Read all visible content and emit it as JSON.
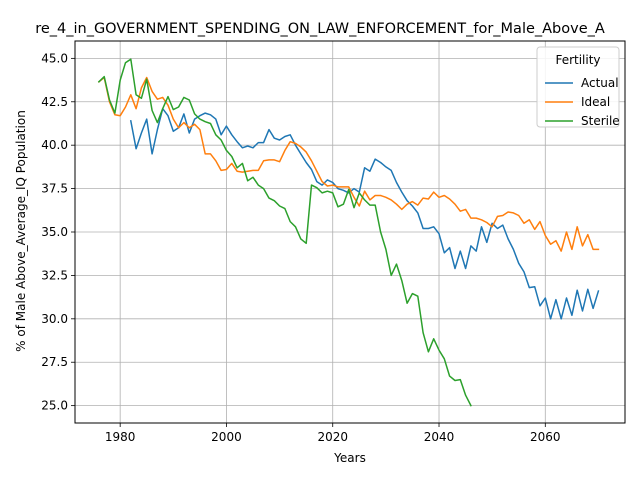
{
  "chart_data": {
    "type": "line",
    "title": "re_4_in_GOVERNMENT_SPENDING_ON_LAW_ENFORCEMENT_for_Male_Above_A",
    "xlabel": "Years",
    "ylabel": "% of Male Above_Average_IQ Population",
    "xlim": [
      1971.5,
      2075
    ],
    "ylim": [
      24.0,
      46.0
    ],
    "grid": true,
    "legend": {
      "title": "Fertility",
      "placement": "top-right"
    },
    "xticks": [
      1980,
      2000,
      2020,
      2040,
      2060
    ],
    "yticks": [
      25.0,
      27.5,
      30.0,
      32.5,
      35.0,
      37.5,
      40.0,
      42.5,
      45.0
    ],
    "series": [
      {
        "name": "Actual",
        "color": "#1f77b4",
        "points": [
          [
            1982,
            41.4
          ],
          [
            1983,
            39.8
          ],
          [
            1984,
            40.7
          ],
          [
            1985,
            41.5
          ],
          [
            1986,
            39.5
          ],
          [
            1987,
            40.9
          ],
          [
            1988,
            42.1
          ],
          [
            1989,
            41.7
          ],
          [
            1990,
            40.8
          ],
          [
            1991,
            41.0
          ],
          [
            1992,
            41.8
          ],
          [
            1993,
            40.7
          ],
          [
            1994,
            41.5
          ],
          [
            1995,
            41.7
          ],
          [
            1996,
            41.85
          ],
          [
            1997,
            41.75
          ],
          [
            1998,
            41.5
          ],
          [
            1999,
            40.6
          ],
          [
            2000,
            41.1
          ],
          [
            2001,
            40.6
          ],
          [
            2002,
            40.2
          ],
          [
            2003,
            39.85
          ],
          [
            2004,
            39.95
          ],
          [
            2005,
            39.85
          ],
          [
            2006,
            40.15
          ],
          [
            2007,
            40.15
          ],
          [
            2008,
            40.9
          ],
          [
            2009,
            40.4
          ],
          [
            2010,
            40.3
          ],
          [
            2011,
            40.5
          ],
          [
            2012,
            40.6
          ],
          [
            2013,
            40.0
          ],
          [
            2014,
            39.5
          ],
          [
            2015,
            39.0
          ],
          [
            2016,
            38.6
          ],
          [
            2017,
            37.9
          ],
          [
            2018,
            37.7
          ],
          [
            2019,
            38.0
          ],
          [
            2020,
            37.85
          ],
          [
            2021,
            37.5
          ],
          [
            2022,
            37.4
          ],
          [
            2023,
            37.25
          ],
          [
            2024,
            37.5
          ],
          [
            2025,
            37.3
          ],
          [
            2026,
            38.7
          ],
          [
            2027,
            38.5
          ],
          [
            2028,
            39.2
          ],
          [
            2029,
            39.0
          ],
          [
            2030,
            38.75
          ],
          [
            2031,
            38.55
          ],
          [
            2032,
            37.85
          ],
          [
            2033,
            37.3
          ],
          [
            2034,
            36.8
          ],
          [
            2035,
            36.5
          ],
          [
            2036,
            36.1
          ],
          [
            2037,
            35.2
          ],
          [
            2038,
            35.2
          ],
          [
            2039,
            35.3
          ],
          [
            2040,
            34.9
          ],
          [
            2041,
            33.8
          ],
          [
            2042,
            34.1
          ],
          [
            2043,
            32.9
          ],
          [
            2044,
            33.9
          ],
          [
            2045,
            32.9
          ],
          [
            2046,
            34.2
          ],
          [
            2047,
            33.9
          ],
          [
            2048,
            35.3
          ],
          [
            2049,
            34.4
          ],
          [
            2050,
            35.5
          ],
          [
            2051,
            35.2
          ],
          [
            2052,
            35.4
          ],
          [
            2053,
            34.6
          ],
          [
            2054,
            34.0
          ],
          [
            2055,
            33.2
          ],
          [
            2056,
            32.7
          ],
          [
            2057,
            31.8
          ],
          [
            2058,
            31.85
          ],
          [
            2059,
            30.75
          ],
          [
            2060,
            31.2
          ],
          [
            2061,
            30.0
          ],
          [
            2062,
            31.1
          ],
          [
            2063,
            30.0
          ],
          [
            2064,
            31.2
          ],
          [
            2065,
            30.2
          ],
          [
            2066,
            31.65
          ],
          [
            2067,
            30.45
          ],
          [
            2068,
            31.7
          ],
          [
            2069,
            30.6
          ],
          [
            2070,
            31.6
          ]
        ]
      },
      {
        "name": "Ideal",
        "color": "#ff7f0e",
        "points": [
          [
            1976,
            43.65
          ],
          [
            1977,
            43.9
          ],
          [
            1978,
            42.5
          ],
          [
            1979,
            41.75
          ],
          [
            1980,
            41.7
          ],
          [
            1981,
            42.2
          ],
          [
            1982,
            42.9
          ],
          [
            1983,
            42.1
          ],
          [
            1984,
            43.3
          ],
          [
            1985,
            43.9
          ],
          [
            1986,
            43.1
          ],
          [
            1987,
            42.65
          ],
          [
            1988,
            42.75
          ],
          [
            1989,
            42.3
          ],
          [
            1990,
            41.5
          ],
          [
            1991,
            41.0
          ],
          [
            1992,
            41.3
          ],
          [
            1993,
            41.0
          ],
          [
            1994,
            41.2
          ],
          [
            1995,
            40.9
          ],
          [
            1996,
            39.5
          ],
          [
            1997,
            39.5
          ],
          [
            1998,
            39.1
          ],
          [
            1999,
            38.55
          ],
          [
            2000,
            38.6
          ],
          [
            2001,
            38.95
          ],
          [
            2002,
            38.5
          ],
          [
            2003,
            38.45
          ],
          [
            2004,
            38.5
          ],
          [
            2005,
            38.55
          ],
          [
            2006,
            38.55
          ],
          [
            2007,
            39.1
          ],
          [
            2008,
            39.15
          ],
          [
            2009,
            39.15
          ],
          [
            2010,
            39.05
          ],
          [
            2011,
            39.7
          ],
          [
            2012,
            40.2
          ],
          [
            2013,
            40.1
          ],
          [
            2014,
            39.9
          ],
          [
            2015,
            39.6
          ],
          [
            2016,
            39.1
          ],
          [
            2017,
            38.5
          ],
          [
            2018,
            37.9
          ],
          [
            2019,
            37.65
          ],
          [
            2020,
            37.7
          ],
          [
            2021,
            37.6
          ],
          [
            2022,
            37.6
          ],
          [
            2023,
            37.6
          ],
          [
            2024,
            37.0
          ],
          [
            2025,
            36.5
          ],
          [
            2026,
            37.35
          ],
          [
            2027,
            36.85
          ],
          [
            2028,
            37.1
          ],
          [
            2029,
            37.1
          ],
          [
            2030,
            37.0
          ],
          [
            2031,
            36.85
          ],
          [
            2032,
            36.6
          ],
          [
            2033,
            36.3
          ],
          [
            2034,
            36.6
          ],
          [
            2035,
            36.75
          ],
          [
            2036,
            36.55
          ],
          [
            2037,
            36.95
          ],
          [
            2038,
            36.9
          ],
          [
            2039,
            37.3
          ],
          [
            2040,
            37.0
          ],
          [
            2041,
            37.1
          ],
          [
            2042,
            36.9
          ],
          [
            2043,
            36.6
          ],
          [
            2044,
            36.2
          ],
          [
            2045,
            36.3
          ],
          [
            2046,
            35.8
          ],
          [
            2047,
            35.8
          ],
          [
            2048,
            35.7
          ],
          [
            2049,
            35.55
          ],
          [
            2050,
            35.3
          ],
          [
            2051,
            35.9
          ],
          [
            2052,
            35.95
          ],
          [
            2053,
            36.15
          ],
          [
            2054,
            36.1
          ],
          [
            2055,
            35.95
          ],
          [
            2056,
            35.5
          ],
          [
            2057,
            35.7
          ],
          [
            2058,
            35.15
          ],
          [
            2059,
            35.6
          ],
          [
            2060,
            34.8
          ],
          [
            2061,
            34.3
          ],
          [
            2062,
            34.5
          ],
          [
            2063,
            33.9
          ],
          [
            2064,
            35.0
          ],
          [
            2065,
            34.0
          ],
          [
            2066,
            35.3
          ],
          [
            2067,
            34.2
          ],
          [
            2068,
            34.85
          ],
          [
            2069,
            34.0
          ],
          [
            2070,
            34.0
          ]
        ]
      },
      {
        "name": "Sterile",
        "color": "#2ca02c",
        "points": [
          [
            1976,
            43.65
          ],
          [
            1977,
            43.95
          ],
          [
            1978,
            42.6
          ],
          [
            1979,
            41.85
          ],
          [
            1980,
            43.75
          ],
          [
            1981,
            44.75
          ],
          [
            1982,
            44.95
          ],
          [
            1983,
            42.9
          ],
          [
            1984,
            42.7
          ],
          [
            1985,
            43.8
          ],
          [
            1986,
            42.0
          ],
          [
            1987,
            41.3
          ],
          [
            1988,
            42.1
          ],
          [
            1989,
            42.8
          ],
          [
            1990,
            42.05
          ],
          [
            1991,
            42.2
          ],
          [
            1992,
            42.75
          ],
          [
            1993,
            42.6
          ],
          [
            1994,
            41.8
          ],
          [
            1995,
            41.5
          ],
          [
            1996,
            41.35
          ],
          [
            1997,
            41.25
          ],
          [
            1998,
            40.6
          ],
          [
            1999,
            40.3
          ],
          [
            2000,
            39.7
          ],
          [
            2001,
            39.35
          ],
          [
            2002,
            38.7
          ],
          [
            2003,
            38.95
          ],
          [
            2004,
            37.95
          ],
          [
            2005,
            38.15
          ],
          [
            2006,
            37.7
          ],
          [
            2007,
            37.5
          ],
          [
            2008,
            36.95
          ],
          [
            2009,
            36.8
          ],
          [
            2010,
            36.5
          ],
          [
            2011,
            36.35
          ],
          [
            2012,
            35.6
          ],
          [
            2013,
            35.3
          ],
          [
            2014,
            34.6
          ],
          [
            2015,
            34.35
          ],
          [
            2016,
            37.7
          ],
          [
            2017,
            37.55
          ],
          [
            2018,
            37.25
          ],
          [
            2019,
            37.35
          ],
          [
            2020,
            37.25
          ],
          [
            2021,
            36.45
          ],
          [
            2022,
            36.6
          ],
          [
            2023,
            37.45
          ],
          [
            2024,
            36.4
          ],
          [
            2025,
            37.25
          ],
          [
            2026,
            36.85
          ],
          [
            2027,
            36.55
          ],
          [
            2028,
            36.55
          ],
          [
            2029,
            35.0
          ],
          [
            2030,
            34.0
          ],
          [
            2031,
            32.5
          ],
          [
            2032,
            33.15
          ],
          [
            2033,
            32.2
          ],
          [
            2034,
            30.9
          ],
          [
            2035,
            31.45
          ],
          [
            2036,
            31.3
          ],
          [
            2037,
            29.2
          ],
          [
            2038,
            28.1
          ],
          [
            2039,
            28.85
          ],
          [
            2040,
            28.2
          ],
          [
            2041,
            27.7
          ],
          [
            2042,
            26.7
          ],
          [
            2043,
            26.45
          ],
          [
            2044,
            26.5
          ],
          [
            2045,
            25.6
          ],
          [
            2046,
            25.0
          ]
        ]
      }
    ]
  }
}
